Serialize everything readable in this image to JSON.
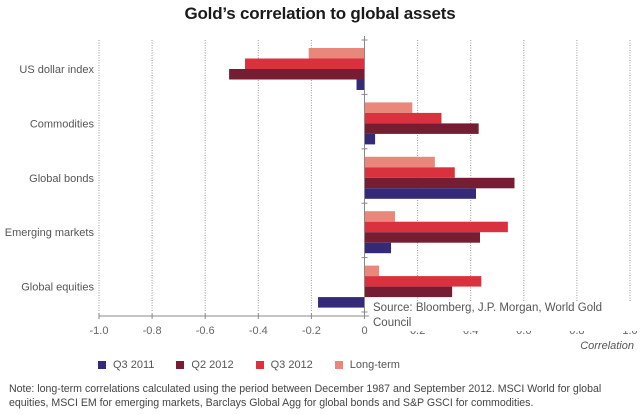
{
  "chart_data": {
    "type": "bar",
    "orientation": "horizontal",
    "title": "Gold’s correlation to global assets",
    "xlabel": "Correlation",
    "ylabel": "",
    "xlim": [
      -1.0,
      1.0
    ],
    "x_ticks": [
      "-1.0",
      "-0.8",
      "-0.6",
      "-0.4",
      "-0.2",
      "0",
      "0.2",
      "0.4",
      "0.6",
      "0.8",
      "1.0"
    ],
    "x_tick_values": [
      -1.0,
      -0.8,
      -0.6,
      -0.4,
      -0.2,
      0,
      0.2,
      0.4,
      0.6,
      0.8,
      1.0
    ],
    "grid": "vertical dotted",
    "legend_position": "bottom",
    "categories": [
      "US dollar index",
      "Commodities",
      "Global bonds",
      "Emerging markets",
      "Global equities"
    ],
    "series": [
      {
        "name": "Long-term",
        "color": "#E8877A",
        "values": [
          -0.21,
          0.18,
          0.265,
          0.115,
          0.055
        ]
      },
      {
        "name": "Q3 2012",
        "color": "#D9323E",
        "values": [
          -0.45,
          0.29,
          0.34,
          0.54,
          0.44
        ]
      },
      {
        "name": "Q2 2012",
        "color": "#761C33",
        "values": [
          -0.51,
          0.43,
          0.565,
          0.435,
          0.33
        ]
      },
      {
        "name": "Q3 2011",
        "color": "#352A78",
        "values": [
          -0.03,
          0.04,
          0.42,
          0.1,
          -0.175
        ]
      }
    ],
    "legend_order": [
      "Q3 2011",
      "Q2 2012",
      "Q3 2012",
      "Long-term"
    ],
    "source": "Source: Bloomberg, J.P. Morgan, World Gold Council",
    "note": "Note: long-term correlations calculated using the period between December 1987 and September 2012. MSCI World for global equities, MSCI EM for emerging markets, Barclays Global Agg for global bonds and S&P GSCI for commodities."
  }
}
